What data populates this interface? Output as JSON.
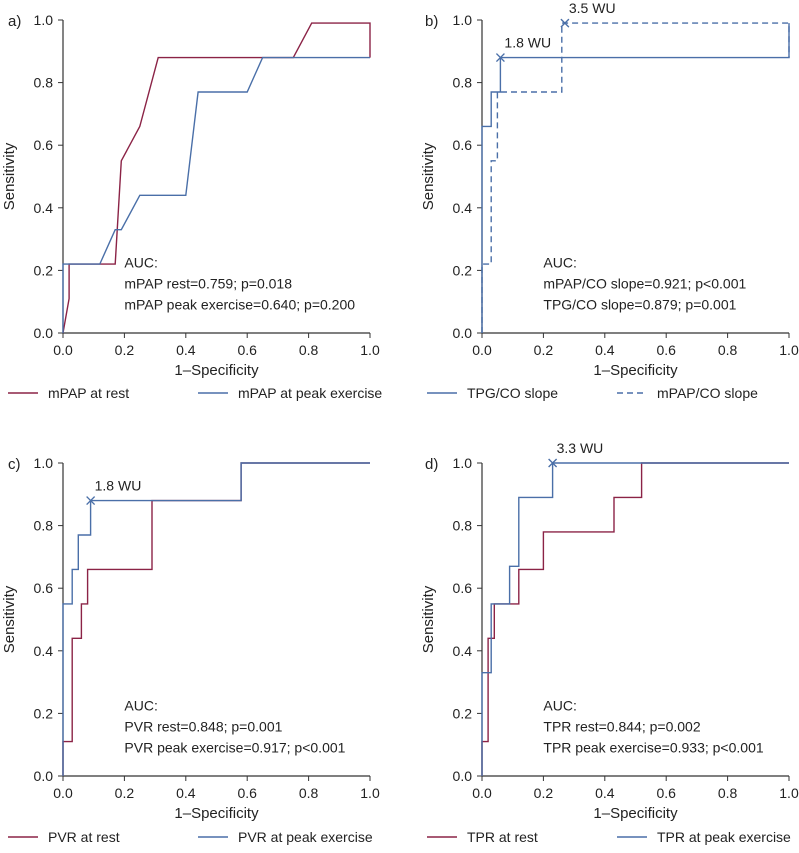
{
  "colors": {
    "red": "#8b2346",
    "blue": "#4a6fa8",
    "axis": "#333333"
  },
  "chart_data": [
    {
      "type": "line",
      "panel_label": "a)",
      "xlabel": "1–Specificity",
      "ylabel": "Sensitivity",
      "xlim": [
        0,
        1
      ],
      "ylim": [
        0,
        1
      ],
      "xticks": [
        "0.0",
        "0.2",
        "0.4",
        "0.6",
        "0.8",
        "1.0"
      ],
      "yticks": [
        "0.0",
        "0.2",
        "0.4",
        "0.6",
        "0.8",
        "1.0"
      ],
      "annotation_lines": [
        "AUC:",
        "mPAP rest=0.759; p=0.018",
        "mPAP peak exercise=0.640; p=0.200"
      ],
      "legend": [
        "mPAP at rest",
        "mPAP at peak exercise"
      ],
      "markers": [],
      "series": [
        {
          "name": "mPAP at rest",
          "color": "#8b2346",
          "dash": false,
          "points": [
            [
              0,
              0
            ],
            [
              0.02,
              0.11
            ],
            [
              0.02,
              0.22
            ],
            [
              0.17,
              0.22
            ],
            [
              0.19,
              0.55
            ],
            [
              0.25,
              0.66
            ],
            [
              0.31,
              0.88
            ],
            [
              0.75,
              0.88
            ],
            [
              0.81,
              0.99
            ],
            [
              1.0,
              0.99
            ],
            [
              1.0,
              0.88
            ]
          ]
        },
        {
          "name": "mPAP at peak exercise",
          "color": "#4a6fa8",
          "dash": false,
          "points": [
            [
              0,
              0
            ],
            [
              0,
              0.22
            ],
            [
              0.12,
              0.22
            ],
            [
              0.17,
              0.33
            ],
            [
              0.19,
              0.33
            ],
            [
              0.25,
              0.44
            ],
            [
              0.4,
              0.44
            ],
            [
              0.44,
              0.77
            ],
            [
              0.6,
              0.77
            ],
            [
              0.65,
              0.88
            ],
            [
              1.0,
              0.88
            ]
          ]
        }
      ]
    },
    {
      "type": "line",
      "panel_label": "b)",
      "xlabel": "1–Specificity",
      "ylabel": "Sensitivity",
      "xlim": [
        0,
        1
      ],
      "ylim": [
        0,
        1
      ],
      "xticks": [
        "0.0",
        "0.2",
        "0.4",
        "0.6",
        "0.8",
        "1.0"
      ],
      "yticks": [
        "0.0",
        "0.2",
        "0.4",
        "0.6",
        "0.8",
        "1.0"
      ],
      "annotation_lines": [
        "AUC:",
        "mPAP/CO slope=0.921; p<0.001",
        "TPG/CO slope=0.879; p=0.001"
      ],
      "legend": [
        "TPG/CO slope",
        "mPAP/CO slope"
      ],
      "markers": [
        {
          "x": 0.06,
          "y": 0.88,
          "label": "1.8 WU"
        },
        {
          "x": 0.27,
          "y": 0.99,
          "label": "3.5 WU"
        }
      ],
      "series": [
        {
          "name": "TPG/CO slope",
          "color": "#4a6fa8",
          "dash": false,
          "points": [
            [
              0,
              0
            ],
            [
              0,
              0.66
            ],
            [
              0.03,
              0.66
            ],
            [
              0.03,
              0.77
            ],
            [
              0.06,
              0.77
            ],
            [
              0.06,
              0.88
            ],
            [
              1.0,
              0.88
            ],
            [
              1.0,
              0.99
            ]
          ]
        },
        {
          "name": "mPAP/CO slope",
          "color": "#4a6fa8",
          "dash": true,
          "points": [
            [
              0,
              0
            ],
            [
              0,
              0.22
            ],
            [
              0.03,
              0.22
            ],
            [
              0.03,
              0.55
            ],
            [
              0.05,
              0.55
            ],
            [
              0.05,
              0.77
            ],
            [
              0.26,
              0.77
            ],
            [
              0.26,
              0.99
            ],
            [
              1.0,
              0.99
            ],
            [
              1.0,
              0.88
            ]
          ]
        }
      ]
    },
    {
      "type": "line",
      "panel_label": "c)",
      "xlabel": "1–Specificity",
      "ylabel": "Sensitivity",
      "xlim": [
        0,
        1
      ],
      "ylim": [
        0,
        1
      ],
      "xticks": [
        "0.0",
        "0.2",
        "0.4",
        "0.6",
        "0.8",
        "1.0"
      ],
      "yticks": [
        "0.0",
        "0.2",
        "0.4",
        "0.6",
        "0.8",
        "1.0"
      ],
      "annotation_lines": [
        "AUC:",
        "PVR rest=0.848; p=0.001",
        "PVR peak exercise=0.917; p<0.001"
      ],
      "legend": [
        "PVR at rest",
        "PVR at peak exercise"
      ],
      "markers": [
        {
          "x": 0.09,
          "y": 0.88,
          "label": "1.8 WU"
        }
      ],
      "series": [
        {
          "name": "PVR at rest",
          "color": "#8b2346",
          "dash": false,
          "points": [
            [
              0,
              0
            ],
            [
              0,
              0.11
            ],
            [
              0.03,
              0.11
            ],
            [
              0.03,
              0.44
            ],
            [
              0.06,
              0.44
            ],
            [
              0.06,
              0.55
            ],
            [
              0.08,
              0.55
            ],
            [
              0.08,
              0.66
            ],
            [
              0.29,
              0.66
            ],
            [
              0.29,
              0.88
            ],
            [
              0.58,
              0.88
            ],
            [
              0.58,
              1.0
            ],
            [
              1.0,
              1.0
            ]
          ]
        },
        {
          "name": "PVR at peak exercise",
          "color": "#4a6fa8",
          "dash": false,
          "points": [
            [
              0,
              0
            ],
            [
              0,
              0.55
            ],
            [
              0.03,
              0.55
            ],
            [
              0.03,
              0.66
            ],
            [
              0.05,
              0.66
            ],
            [
              0.05,
              0.77
            ],
            [
              0.09,
              0.77
            ],
            [
              0.09,
              0.88
            ],
            [
              0.58,
              0.88
            ],
            [
              0.58,
              1.0
            ],
            [
              1.0,
              1.0
            ]
          ]
        }
      ]
    },
    {
      "type": "line",
      "panel_label": "d)",
      "xlabel": "1–Specificity",
      "ylabel": "Sensitivity",
      "xlim": [
        0,
        1
      ],
      "ylim": [
        0,
        1
      ],
      "xticks": [
        "0.0",
        "0.2",
        "0.4",
        "0.6",
        "0.8",
        "1.0"
      ],
      "yticks": [
        "0.0",
        "0.2",
        "0.4",
        "0.6",
        "0.8",
        "1.0"
      ],
      "annotation_lines": [
        "AUC:",
        "TPR rest=0.844; p=0.002",
        "TPR peak exercise=0.933; p<0.001"
      ],
      "legend": [
        "TPR at rest",
        "TPR at peak exercise"
      ],
      "markers": [
        {
          "x": 0.23,
          "y": 1.0,
          "label": "3.3 WU"
        }
      ],
      "series": [
        {
          "name": "TPR at rest",
          "color": "#8b2346",
          "dash": false,
          "points": [
            [
              0,
              0
            ],
            [
              0,
              0.11
            ],
            [
              0.02,
              0.11
            ],
            [
              0.02,
              0.44
            ],
            [
              0.04,
              0.44
            ],
            [
              0.04,
              0.55
            ],
            [
              0.12,
              0.55
            ],
            [
              0.12,
              0.66
            ],
            [
              0.2,
              0.66
            ],
            [
              0.2,
              0.78
            ],
            [
              0.43,
              0.78
            ],
            [
              0.43,
              0.89
            ],
            [
              0.52,
              0.89
            ],
            [
              0.52,
              1.0
            ],
            [
              1.0,
              1.0
            ]
          ]
        },
        {
          "name": "TPR at peak exercise",
          "color": "#4a6fa8",
          "dash": false,
          "points": [
            [
              0,
              0
            ],
            [
              0,
              0.33
            ],
            [
              0.03,
              0.33
            ],
            [
              0.03,
              0.55
            ],
            [
              0.09,
              0.55
            ],
            [
              0.09,
              0.67
            ],
            [
              0.12,
              0.67
            ],
            [
              0.12,
              0.89
            ],
            [
              0.23,
              0.89
            ],
            [
              0.23,
              1.0
            ],
            [
              1.0,
              1.0
            ]
          ]
        }
      ]
    }
  ]
}
